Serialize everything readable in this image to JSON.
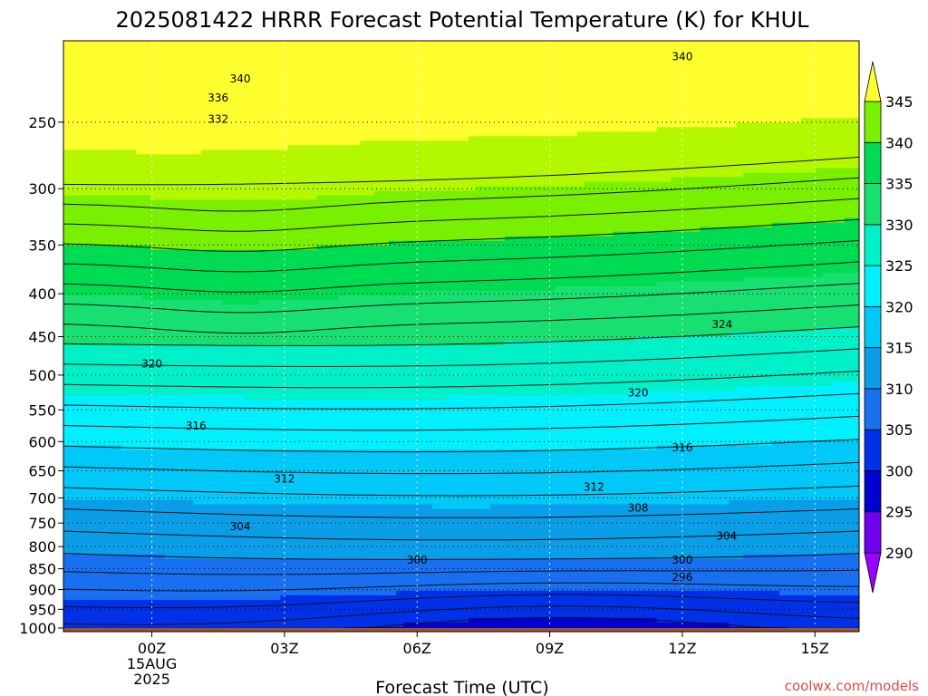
{
  "chart_data": {
    "type": "contour",
    "title": "2025081422 HRRR Forecast Potential Temperature (K) for KHUL",
    "xlabel": "Forecast Time (UTC)",
    "ylabel": "",
    "x_ticks": [
      {
        "hour": 0,
        "label": "00Z",
        "sub1": "15AUG",
        "sub2": "2025"
      },
      {
        "hour": 3,
        "label": "03Z"
      },
      {
        "hour": 6,
        "label": "06Z"
      },
      {
        "hour": 9,
        "label": "09Z"
      },
      {
        "hour": 12,
        "label": "12Z"
      },
      {
        "hour": 15,
        "label": "15Z"
      }
    ],
    "xlim": [
      -2,
      16
    ],
    "y_ticks": [
      250,
      300,
      350,
      400,
      450,
      500,
      550,
      600,
      650,
      700,
      750,
      800,
      850,
      900,
      950,
      1000
    ],
    "ylim": [
      1010,
      200
    ],
    "y_scale": "log",
    "grid": "dotted",
    "colorbar": {
      "labels": [
        290,
        295,
        300,
        305,
        310,
        315,
        320,
        325,
        330,
        335,
        340,
        345
      ],
      "colors": [
        "#9a00ff",
        "#6e00ee",
        "#0000d0",
        "#0030e8",
        "#1870f0",
        "#0a9ee8",
        "#00c8f8",
        "#00f0ff",
        "#00f0c8",
        "#18e070",
        "#00dc52",
        "#78f000",
        "#b4f800",
        "#ffff30"
      ]
    },
    "contour_interval": 2,
    "isotherm_labels": [
      {
        "value": 340,
        "hour": 12.0,
        "p": 209
      },
      {
        "value": 340,
        "hour": 2.0,
        "p": 222
      },
      {
        "value": 336,
        "hour": 1.5,
        "p": 234
      },
      {
        "value": 332,
        "hour": 1.5,
        "p": 248
      },
      {
        "value": 324,
        "hour": 12.9,
        "p": 435
      },
      {
        "value": 320,
        "hour": 0.0,
        "p": 485
      },
      {
        "value": 320,
        "hour": 11.0,
        "p": 525
      },
      {
        "value": 316,
        "hour": 1.0,
        "p": 575
      },
      {
        "value": 316,
        "hour": 12.0,
        "p": 610
      },
      {
        "value": 312,
        "hour": 3.0,
        "p": 665
      },
      {
        "value": 312,
        "hour": 10.0,
        "p": 680
      },
      {
        "value": 308,
        "hour": 11.0,
        "p": 720
      },
      {
        "value": 304,
        "hour": 2.0,
        "p": 757
      },
      {
        "value": 304,
        "hour": 13.0,
        "p": 777
      },
      {
        "value": 300,
        "hour": 6.0,
        "p": 830
      },
      {
        "value": 300,
        "hour": 12.0,
        "p": 830
      },
      {
        "value": 296,
        "hour": 12.0,
        "p": 870
      }
    ],
    "surface_pressure": 1000,
    "surface_color": "#a0522d"
  },
  "credit": "coolwx.com/models"
}
